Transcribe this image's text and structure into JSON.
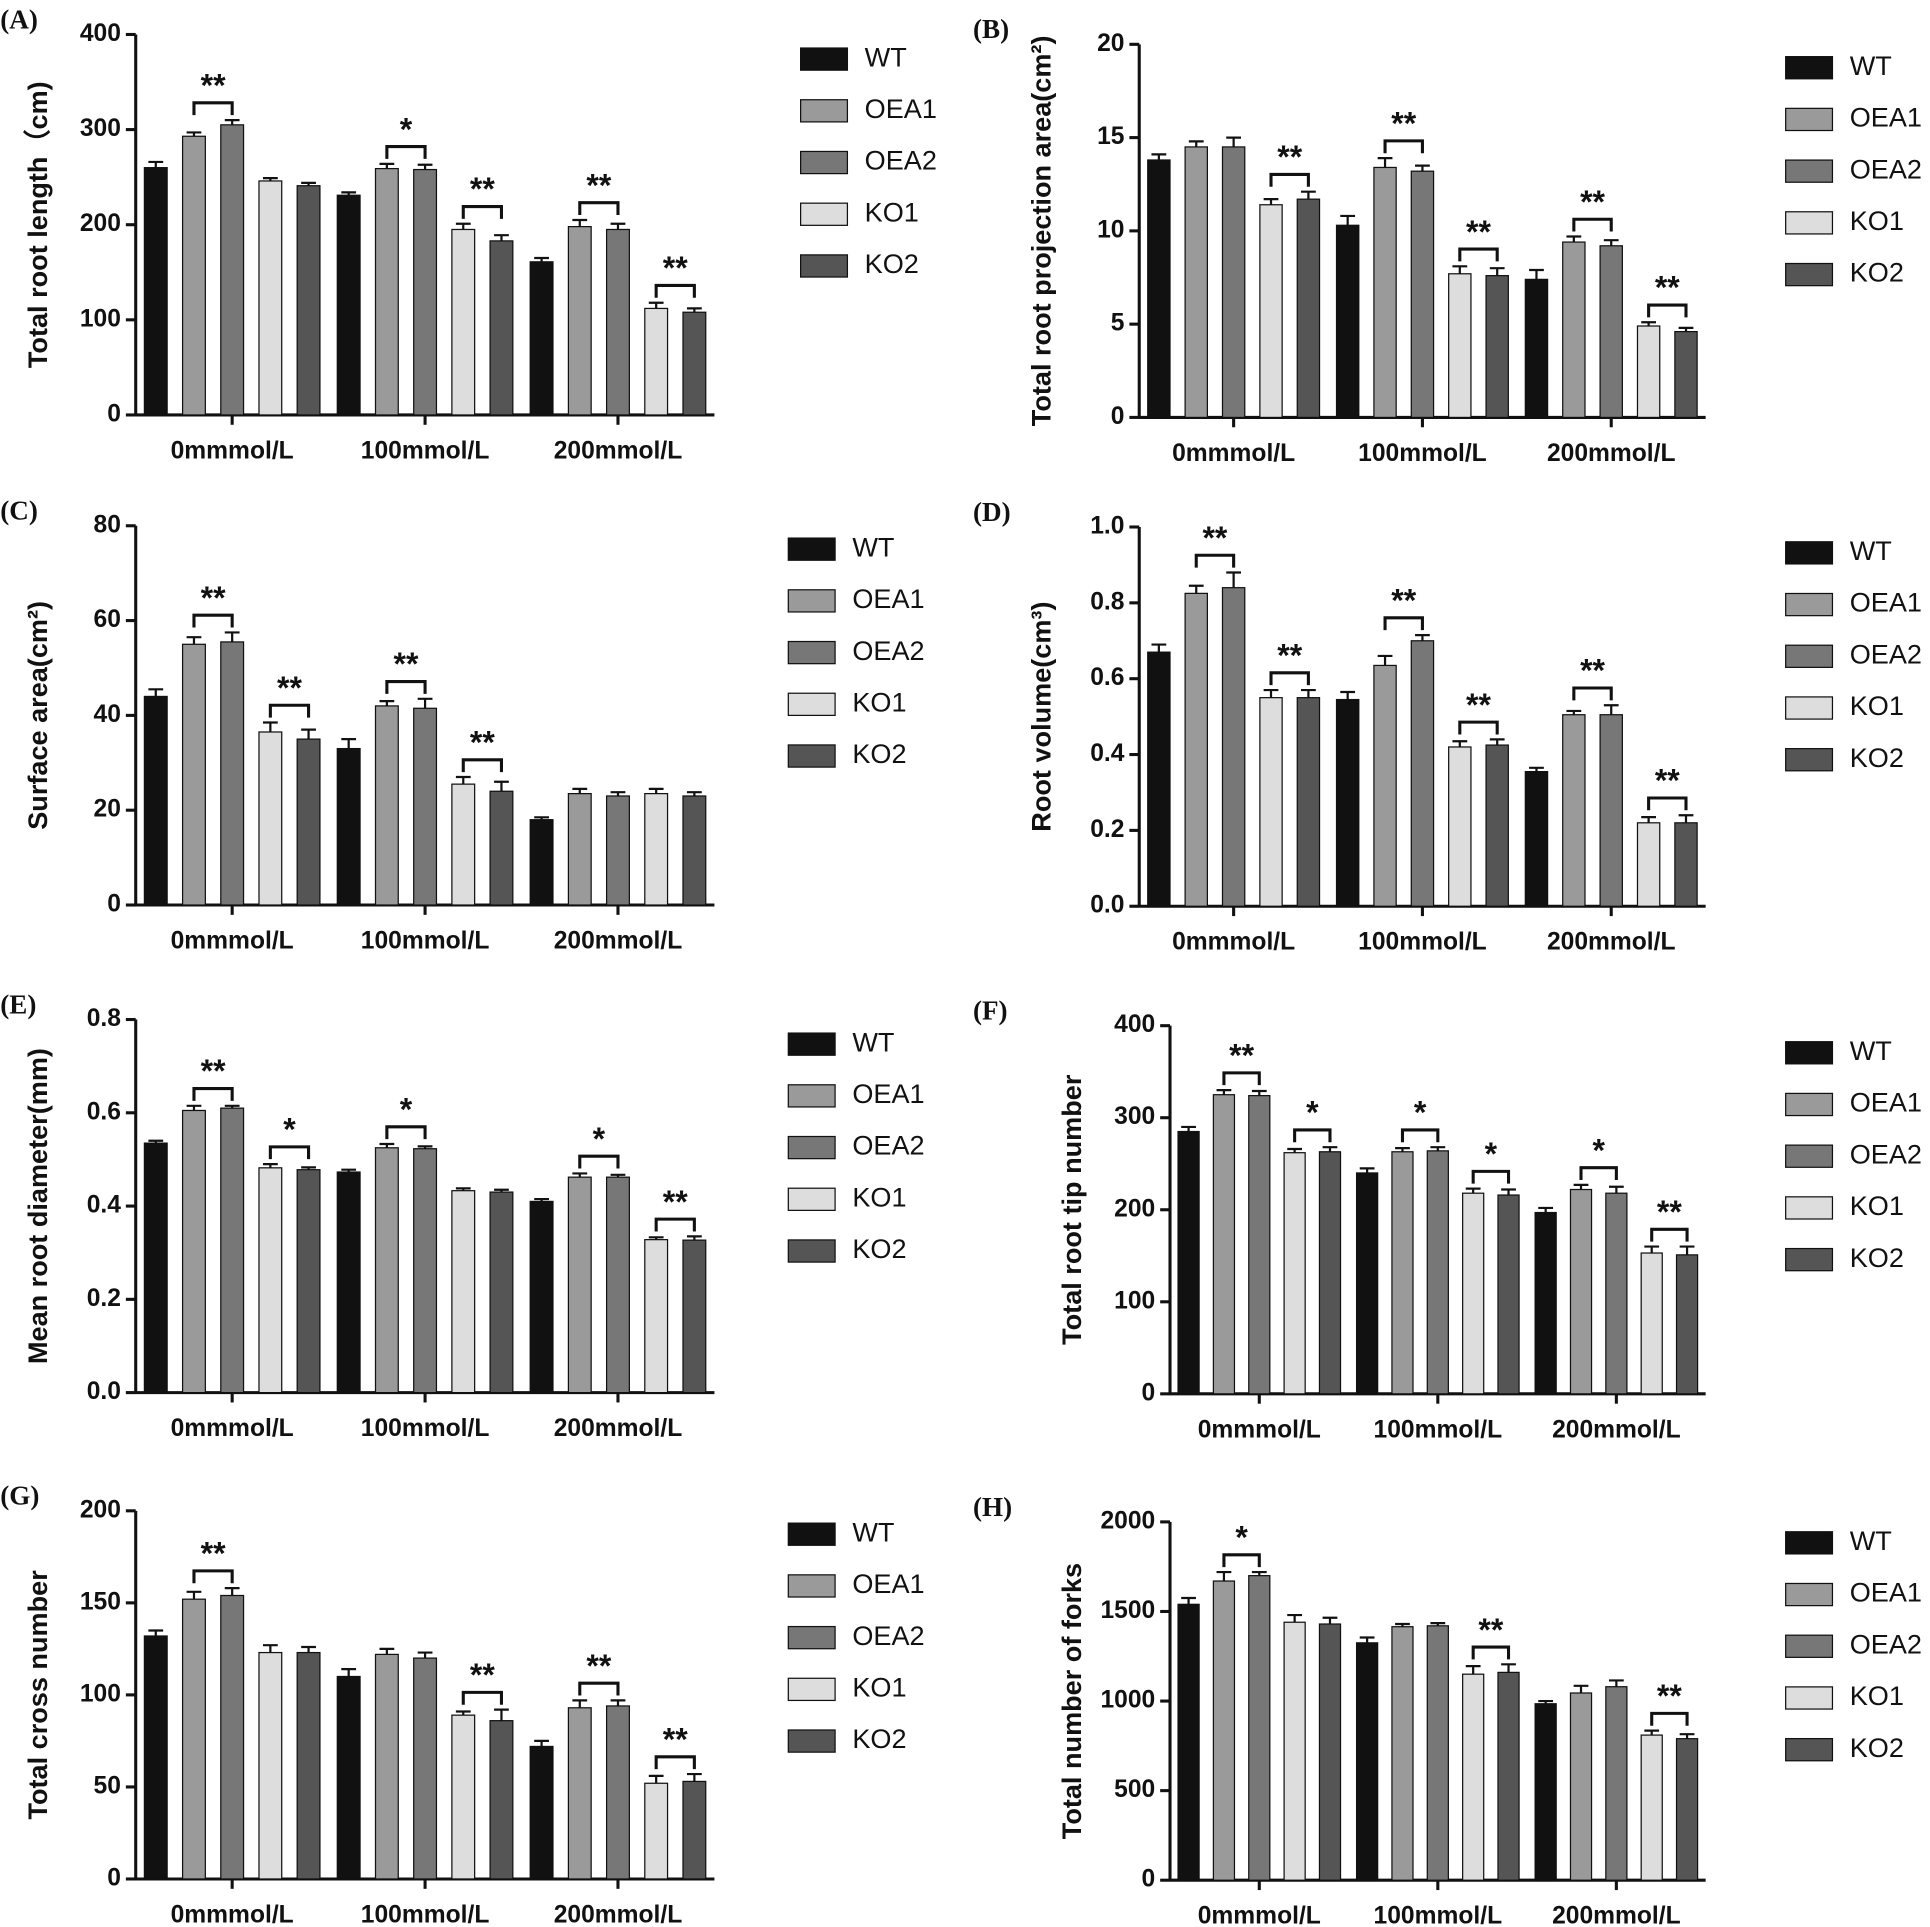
{
  "chart_data": [
    {
      "type": "bar",
      "panel_label": "(A)",
      "y_label": "Total root length（cm)",
      "categories": [
        "0mmmol/L",
        "100mmol/L",
        "200mmol/L"
      ],
      "series": [
        {
          "name": "WT",
          "color": "#111111",
          "values": [
            260,
            231,
            161
          ],
          "errors": [
            6,
            3,
            4
          ],
          "significance": [
            null,
            null,
            null
          ]
        },
        {
          "name": "OEA1",
          "color": "#9a9a9a",
          "values": [
            293,
            259,
            198
          ],
          "errors": [
            4,
            5,
            7
          ],
          "significance": [
            "**",
            "*",
            "**"
          ]
        },
        {
          "name": "OEA2",
          "color": "#777777",
          "values": [
            305,
            258,
            195
          ],
          "errors": [
            5,
            5,
            6
          ],
          "significance": [
            null,
            null,
            null
          ]
        },
        {
          "name": "KO1",
          "color": "#dddddd",
          "values": [
            246,
            195,
            112
          ],
          "errors": [
            3,
            6,
            6
          ],
          "significance": [
            null,
            "**",
            "**"
          ]
        },
        {
          "name": "KO2",
          "color": "#555555",
          "values": [
            241,
            183,
            108
          ],
          "errors": [
            3,
            6,
            4
          ],
          "significance": [
            null,
            null,
            null
          ]
        }
      ],
      "ylim": [
        0,
        400
      ],
      "yticks": [
        0,
        100,
        200,
        300,
        400
      ]
    },
    {
      "type": "bar",
      "panel_label": "(B)",
      "y_label": "Total root projection area(cm²)",
      "categories": [
        "0mmmol/L",
        "100mmol/L",
        "200mmol/L"
      ],
      "series": [
        {
          "name": "WT",
          "color": "#111111",
          "values": [
            13.8,
            10.3,
            7.4
          ],
          "errors": [
            0.3,
            0.5,
            0.5
          ],
          "significance": [
            null,
            null,
            null
          ]
        },
        {
          "name": "OEA1",
          "color": "#9a9a9a",
          "values": [
            14.5,
            13.4,
            9.4
          ],
          "errors": [
            0.3,
            0.5,
            0.3
          ],
          "significance": [
            null,
            "**",
            "**"
          ]
        },
        {
          "name": "OEA2",
          "color": "#777777",
          "values": [
            14.5,
            13.2,
            9.2
          ],
          "errors": [
            0.5,
            0.3,
            0.3
          ],
          "significance": [
            null,
            null,
            null
          ]
        },
        {
          "name": "KO1",
          "color": "#dddddd",
          "values": [
            11.4,
            7.7,
            4.9
          ],
          "errors": [
            0.3,
            0.4,
            0.2
          ],
          "significance": [
            "**",
            "**",
            "**"
          ]
        },
        {
          "name": "KO2",
          "color": "#555555",
          "values": [
            11.7,
            7.6,
            4.6
          ],
          "errors": [
            0.4,
            0.4,
            0.2
          ],
          "significance": [
            null,
            null,
            null
          ]
        }
      ],
      "ylim": [
        0,
        20
      ],
      "yticks": [
        0,
        5,
        10,
        15,
        20
      ]
    },
    {
      "type": "bar",
      "panel_label": "(C)",
      "y_label": "Surface area(cm²)",
      "categories": [
        "0mmmol/L",
        "100mmol/L",
        "200mmol/L"
      ],
      "series": [
        {
          "name": "WT",
          "color": "#111111",
          "values": [
            44,
            33,
            18
          ],
          "errors": [
            1.5,
            2,
            0.5
          ],
          "significance": [
            null,
            null,
            null
          ]
        },
        {
          "name": "OEA1",
          "color": "#9a9a9a",
          "values": [
            55,
            42,
            23.5
          ],
          "errors": [
            1.5,
            1,
            1
          ],
          "significance": [
            "**",
            "**",
            null
          ]
        },
        {
          "name": "OEA2",
          "color": "#777777",
          "values": [
            55.5,
            41.5,
            23
          ],
          "errors": [
            2,
            2,
            0.8
          ],
          "significance": [
            null,
            null,
            null
          ]
        },
        {
          "name": "KO1",
          "color": "#dddddd",
          "values": [
            36.5,
            25.5,
            23.5
          ],
          "errors": [
            2,
            1.5,
            1
          ],
          "significance": [
            "**",
            "**",
            null
          ]
        },
        {
          "name": "KO2",
          "color": "#555555",
          "values": [
            35,
            24,
            23
          ],
          "errors": [
            2,
            2,
            0.8
          ],
          "significance": [
            null,
            null,
            null
          ]
        }
      ],
      "ylim": [
        0,
        80
      ],
      "yticks": [
        0,
        20,
        40,
        60,
        80
      ]
    },
    {
      "type": "bar",
      "panel_label": "(D)",
      "y_label": "Root volume(cm³)",
      "categories": [
        "0mmmol/L",
        "100mmol/L",
        "200mmol/L"
      ],
      "series": [
        {
          "name": "WT",
          "color": "#111111",
          "values": [
            0.67,
            0.545,
            0.355
          ],
          "errors": [
            0.02,
            0.02,
            0.01
          ],
          "significance": [
            null,
            null,
            null
          ]
        },
        {
          "name": "OEA1",
          "color": "#9a9a9a",
          "values": [
            0.825,
            0.635,
            0.505
          ],
          "errors": [
            0.02,
            0.025,
            0.01
          ],
          "significance": [
            "**",
            "**",
            "**"
          ]
        },
        {
          "name": "OEA2",
          "color": "#777777",
          "values": [
            0.84,
            0.7,
            0.505
          ],
          "errors": [
            0.04,
            0.015,
            0.025
          ],
          "significance": [
            null,
            null,
            null
          ]
        },
        {
          "name": "KO1",
          "color": "#dddddd",
          "values": [
            0.55,
            0.42,
            0.22
          ],
          "errors": [
            0.02,
            0.015,
            0.015
          ],
          "significance": [
            "**",
            "**",
            "**"
          ]
        },
        {
          "name": "KO2",
          "color": "#555555",
          "values": [
            0.55,
            0.425,
            0.22
          ],
          "errors": [
            0.02,
            0.015,
            0.02
          ],
          "significance": [
            null,
            null,
            null
          ]
        }
      ],
      "ylim": [
        0,
        1
      ],
      "yticks": [
        {
          "value": 0,
          "label": "0.0"
        },
        0.2,
        0.4,
        0.6,
        0.8,
        {
          "value": 1,
          "label": "1.0"
        }
      ]
    },
    {
      "type": "bar",
      "panel_label": "(E)",
      "y_label": "Mean root diameter(mm)",
      "categories": [
        "0mmmol/L",
        "100mmol/L",
        "200mmol/L"
      ],
      "series": [
        {
          "name": "WT",
          "color": "#111111",
          "values": [
            0.535,
            0.473,
            0.41
          ],
          "errors": [
            0.005,
            0.005,
            0.005
          ],
          "significance": [
            null,
            null,
            null
          ]
        },
        {
          "name": "OEA1",
          "color": "#9a9a9a",
          "values": [
            0.605,
            0.525,
            0.462
          ],
          "errors": [
            0.01,
            0.008,
            0.008
          ],
          "significance": [
            "**",
            "*",
            "*"
          ]
        },
        {
          "name": "OEA2",
          "color": "#777777",
          "values": [
            0.61,
            0.523,
            0.462
          ],
          "errors": [
            0.005,
            0.005,
            0.005
          ],
          "significance": [
            null,
            null,
            null
          ]
        },
        {
          "name": "KO1",
          "color": "#dddddd",
          "values": [
            0.482,
            0.433,
            0.328
          ],
          "errors": [
            0.008,
            0.005,
            0.005
          ],
          "significance": [
            "*",
            null,
            "**"
          ]
        },
        {
          "name": "KO2",
          "color": "#555555",
          "values": [
            0.478,
            0.43,
            0.327
          ],
          "errors": [
            0.005,
            0.005,
            0.008
          ],
          "significance": [
            null,
            null,
            null
          ]
        }
      ],
      "ylim": [
        0,
        0.8
      ],
      "yticks": [
        {
          "value": 0,
          "label": "0.0"
        },
        0.2,
        0.4,
        0.6,
        0.8
      ]
    },
    {
      "type": "bar",
      "panel_label": "(F)",
      "y_label": "Total root tip number",
      "categories": [
        "0mmmol/L",
        "100mmol/L",
        "200mmol/L"
      ],
      "series": [
        {
          "name": "WT",
          "color": "#111111",
          "values": [
            285,
            240,
            197
          ],
          "errors": [
            5,
            5,
            5
          ],
          "significance": [
            null,
            null,
            null
          ]
        },
        {
          "name": "OEA1",
          "color": "#9a9a9a",
          "values": [
            325,
            263,
            222
          ],
          "errors": [
            5,
            4,
            5
          ],
          "significance": [
            "**",
            "*",
            "*"
          ]
        },
        {
          "name": "OEA2",
          "color": "#777777",
          "values": [
            324,
            264,
            218
          ],
          "errors": [
            5,
            4,
            7
          ],
          "significance": [
            null,
            null,
            null
          ]
        },
        {
          "name": "KO1",
          "color": "#dddddd",
          "values": [
            262,
            218,
            153
          ],
          "errors": [
            4,
            5,
            7
          ],
          "significance": [
            "*",
            "*",
            "**"
          ]
        },
        {
          "name": "KO2",
          "color": "#555555",
          "values": [
            263,
            216,
            151
          ],
          "errors": [
            5,
            6,
            9
          ],
          "significance": [
            null,
            null,
            null
          ]
        }
      ],
      "ylim": [
        0,
        400
      ],
      "yticks": [
        0,
        100,
        200,
        300,
        400
      ]
    },
    {
      "type": "bar",
      "panel_label": "(G)",
      "y_label": "Total cross number",
      "categories": [
        "0mmmol/L",
        "100mmol/L",
        "200mmol/L"
      ],
      "series": [
        {
          "name": "WT",
          "color": "#111111",
          "values": [
            132,
            110,
            72
          ],
          "errors": [
            3,
            4,
            3
          ],
          "significance": [
            null,
            null,
            null
          ]
        },
        {
          "name": "OEA1",
          "color": "#9a9a9a",
          "values": [
            152,
            122,
            93
          ],
          "errors": [
            4,
            3,
            4
          ],
          "significance": [
            "**",
            null,
            "**"
          ]
        },
        {
          "name": "OEA2",
          "color": "#777777",
          "values": [
            154,
            120,
            94
          ],
          "errors": [
            4,
            3,
            3
          ],
          "significance": [
            null,
            null,
            null
          ]
        },
        {
          "name": "KO1",
          "color": "#dddddd",
          "values": [
            123,
            89,
            52
          ],
          "errors": [
            4,
            2,
            4
          ],
          "significance": [
            null,
            "**",
            "**"
          ]
        },
        {
          "name": "KO2",
          "color": "#555555",
          "values": [
            123,
            86,
            53
          ],
          "errors": [
            3,
            6,
            4
          ],
          "significance": [
            null,
            null,
            null
          ]
        }
      ],
      "ylim": [
        0,
        200
      ],
      "yticks": [
        0,
        50,
        100,
        150,
        200
      ]
    },
    {
      "type": "bar",
      "panel_label": "(H)",
      "y_label": "Total number of forks",
      "categories": [
        "0mmmol/L",
        "100mmol/L",
        "200mmol/L"
      ],
      "series": [
        {
          "name": "WT",
          "color": "#111111",
          "values": [
            1540,
            1325,
            985
          ],
          "errors": [
            35,
            30,
            15
          ],
          "significance": [
            null,
            null,
            null
          ]
        },
        {
          "name": "OEA1",
          "color": "#9a9a9a",
          "values": [
            1670,
            1415,
            1045
          ],
          "errors": [
            50,
            15,
            40
          ],
          "significance": [
            "*",
            null,
            null
          ]
        },
        {
          "name": "OEA2",
          "color": "#777777",
          "values": [
            1700,
            1420,
            1080
          ],
          "errors": [
            20,
            15,
            35
          ],
          "significance": [
            null,
            null,
            null
          ]
        },
        {
          "name": "KO1",
          "color": "#dddddd",
          "values": [
            1440,
            1150,
            810
          ],
          "errors": [
            40,
            45,
            25
          ],
          "significance": [
            null,
            "**",
            "**"
          ]
        },
        {
          "name": "KO2",
          "color": "#555555",
          "values": [
            1430,
            1160,
            790
          ],
          "errors": [
            35,
            45,
            25
          ],
          "significance": [
            null,
            null,
            null
          ]
        }
      ],
      "ylim": [
        0,
        2000
      ],
      "yticks": [
        0,
        500,
        1000,
        1500,
        2000
      ]
    }
  ]
}
